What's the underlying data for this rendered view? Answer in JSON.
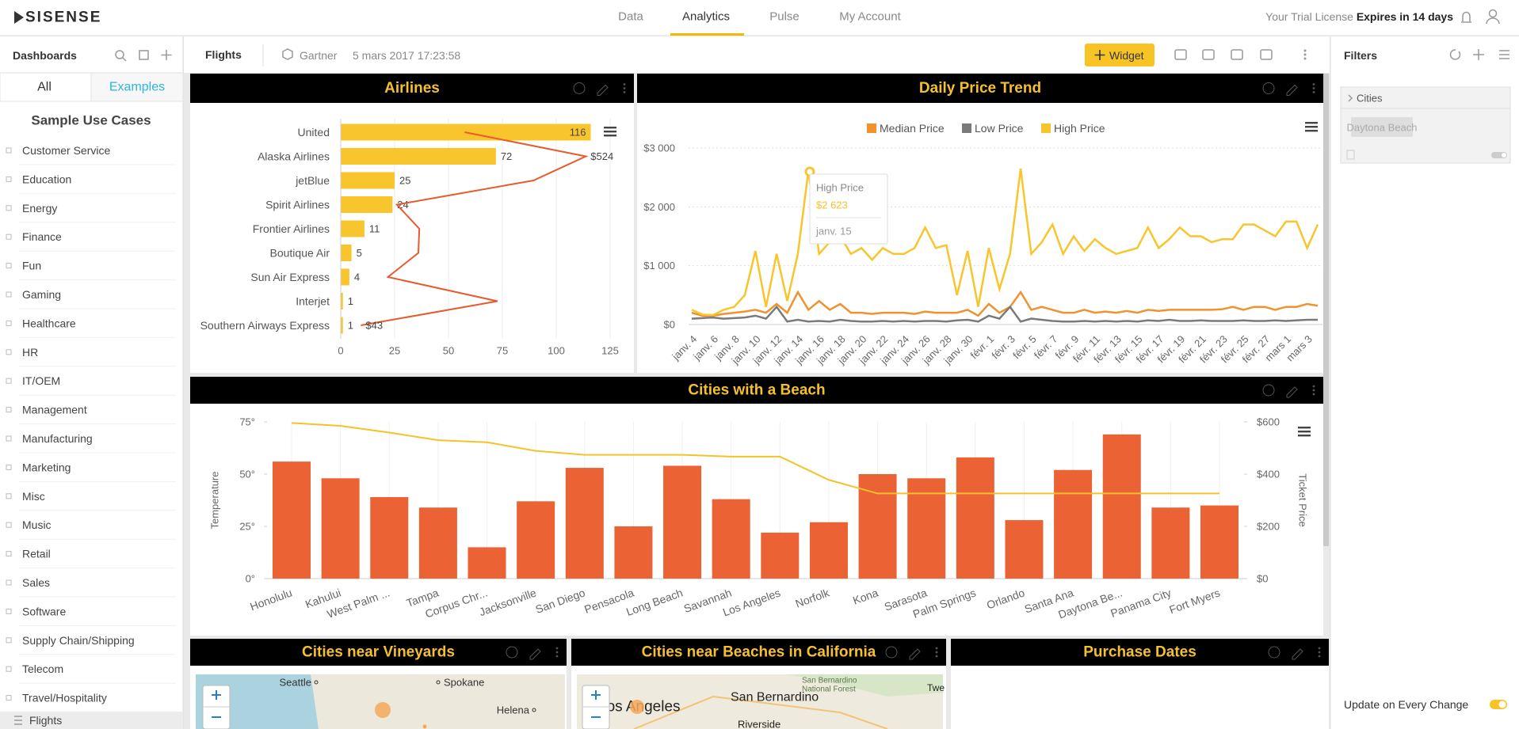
{
  "nav": {
    "logo": "SISENSE",
    "items": [
      "Data",
      "Analytics",
      "Pulse",
      "My Account"
    ],
    "active": "Analytics",
    "trial_prefix": "Your Trial License",
    "trial_expiry": "Expires in 14 days"
  },
  "sidebar": {
    "title": "Dashboards",
    "tabs": [
      "All",
      "Examples"
    ],
    "section": "Sample Use Cases",
    "items": [
      "Customer Service",
      "Education",
      "Energy",
      "Finance",
      "Fun",
      "Gaming",
      "Healthcare",
      "HR",
      "IT/OEM",
      "Management",
      "Manufacturing",
      "Marketing",
      "Misc",
      "Music",
      "Retail",
      "Sales",
      "Software",
      "Supply Chain/Shipping",
      "Telecom",
      "Travel/Hospitality"
    ],
    "selected": "Flights"
  },
  "toolbar": {
    "dashboard": "Flights",
    "source": "Gartner",
    "date": "5 mars 2017 17:23:58",
    "widget_button": "Widget"
  },
  "filters": {
    "title": "Filters",
    "field": "Cities",
    "value": "Daytona Beach",
    "update_label": "Update on Every Change"
  },
  "widgets": [
    {
      "title": "Airlines",
      "chart_data": {
        "type": "bar",
        "orientation": "horizontal",
        "categories": [
          "United",
          "Alaska Airlines",
          "jetBlue",
          "Spirit Airlines",
          "Frontier Airlines",
          "Boutique Air",
          "Sun Air Express",
          "Interjet",
          "Southern Airways Express"
        ],
        "values": [
          116,
          72,
          25,
          24,
          11,
          5,
          4,
          1,
          1
        ],
        "color": "#f9c52c",
        "xlim": [
          0,
          125
        ],
        "xticks": [
          0,
          25,
          50,
          75,
          100,
          125
        ],
        "line": {
          "values": [
            265,
            524,
            412,
            120,
            168,
            166,
            101,
            335,
            43
          ],
          "value_labels": [
            null,
            "$524",
            null,
            null,
            null,
            null,
            null,
            null,
            "$43"
          ],
          "color": "#e85a2c",
          "x2lim": [
            0,
            576
          ]
        }
      }
    },
    {
      "title": "Daily Price Trend",
      "chart_data": {
        "type": "line",
        "categories": [
          "janv. 4",
          null,
          "janv. 6",
          null,
          "janv. 8",
          null,
          "janv. 10",
          null,
          "janv. 12",
          null,
          "janv. 14",
          null,
          "janv. 16",
          null,
          "janv. 18",
          null,
          "janv. 20",
          null,
          "janv. 22",
          null,
          "janv. 24",
          null,
          "janv. 26",
          null,
          "janv. 28",
          null,
          "janv. 30",
          null,
          "févr. 1",
          null,
          "févr. 3",
          null,
          "févr. 5",
          null,
          "févr. 7",
          null,
          "févr. 9",
          null,
          "févr. 11",
          null,
          "févr. 13",
          null,
          "févr. 15",
          null,
          "févr. 17",
          null,
          "févr. 19",
          null,
          "févr. 21",
          null,
          "févr. 23",
          null,
          "févr. 25",
          null,
          "févr. 27",
          null,
          "mars 1",
          null,
          "mars 3",
          null
        ],
        "series": [
          {
            "name": "Median Price",
            "color": "#f0922e",
            "values": [
              200,
              150,
              150,
              180,
              200,
              220,
              250,
              200,
              350,
              200,
              550,
              250,
              400,
              250,
              350,
              200,
              200,
              180,
              200,
              200,
              200,
              180,
              220,
              200,
              200,
              200,
              250,
              150,
              350,
              200,
              300,
              550,
              250,
              300,
              250,
              200,
              200,
              250,
              200,
              220,
              200,
              230,
              200,
              250,
              230,
              250,
              250,
              250,
              250,
              250,
              260,
              300,
              250,
              300,
              300,
              250,
              300,
              300,
              350,
              320
            ]
          },
          {
            "name": "Low Price",
            "color": "#7a7a7a",
            "values": [
              100,
              110,
              120,
              100,
              110,
              120,
              150,
              100,
              300,
              50,
              80,
              50,
              60,
              50,
              80,
              60,
              50,
              50,
              60,
              50,
              60,
              50,
              60,
              60,
              50,
              70,
              80,
              50,
              150,
              100,
              300,
              50,
              100,
              80,
              60,
              50,
              50,
              60,
              50,
              60,
              50,
              60,
              50,
              70,
              60,
              80,
              60,
              60,
              70,
              60,
              60,
              60,
              70,
              60,
              60,
              70,
              60,
              70,
              80,
              80
            ]
          },
          {
            "name": "High Price",
            "color": "#f9c52c",
            "values": [
              250,
              170,
              160,
              250,
              300,
              500,
              1250,
              300,
              1200,
              400,
              1200,
              2623,
              1200,
              1400,
              1500,
              1200,
              1300,
              1100,
              1300,
              1200,
              1200,
              1300,
              1650,
              1300,
              1350,
              500,
              1250,
              300,
              1300,
              600,
              1200,
              2650,
              1200,
              1400,
              1700,
              1200,
              1500,
              1250,
              1450,
              1300,
              1200,
              1250,
              1300,
              1650,
              1300,
              1450,
              1650,
              1500,
              1500,
              1400,
              1450,
              1450,
              1700,
              1700,
              1600,
              1500,
              1750,
              1750,
              1300,
              1700
            ]
          }
        ],
        "ylim": [
          0,
          3000
        ],
        "yticks": [
          {
            "value": 0,
            "label": "$0"
          },
          {
            "value": 1000,
            "label": "$1 000"
          },
          {
            "value": 2000,
            "label": "$2 000"
          },
          {
            "value": 3000,
            "label": "$3 000"
          }
        ],
        "grid": true,
        "legend": "top",
        "tooltip": {
          "value_label": "$2 623",
          "category": "janv. 15"
        }
      }
    },
    {
      "title": "Cities with a Beach",
      "chart_data": {
        "type": "bar_line",
        "categories": [
          "Honolulu",
          "Kahului",
          "West Palm ...",
          "Tampa",
          "Corpus Chr...",
          "Jacksonville",
          "San Diego",
          "Pensacola",
          "Long Beach",
          "Savannah",
          "Los Angeles",
          "Norfolk",
          "Kona",
          "Sarasota",
          "Palm Springs",
          "Orlando",
          "Santa Ana",
          "Daytona Be...",
          "Panama City",
          "Fort Myers"
        ],
        "series": [
          {
            "color": "#eb6234",
            "values": [
              56,
              48,
              39,
              34,
              15,
              37,
              53,
              25,
              54,
              38,
              22,
              27,
              50,
              48,
              58,
              28,
              52,
              69,
              34,
              35
            ]
          },
          {
            "color": "#f5c227",
            "axis": "y2",
            "values": [
              596,
              585,
              559,
              530,
              522,
              489,
              474,
              474,
              474,
              467,
              467,
              378,
              326,
              326,
              326,
              326,
              326,
              326,
              326,
              326
            ]
          }
        ],
        "y_label": "Temperature",
        "y2_label": "Ticket Price",
        "ylim": [
          0,
          75
        ],
        "yticks": [
          {
            "value": 0,
            "label": "0°"
          },
          {
            "value": 25,
            "label": "25°"
          },
          {
            "value": 50,
            "label": "50°"
          },
          {
            "value": 75,
            "label": "75°"
          }
        ],
        "y2lim": [
          0,
          600
        ],
        "y2ticks": [
          {
            "value": 0,
            "label": "$0"
          },
          {
            "value": 200,
            "label": "$200"
          },
          {
            "value": 400,
            "label": "$400"
          },
          {
            "value": 600,
            "label": "$600"
          }
        ]
      }
    },
    {
      "title": "Cities near Vineyards",
      "map_labels": [
        "Seattle",
        "Spokane",
        "Helena"
      ]
    },
    {
      "title": "Cities near Beaches in California",
      "map_labels": [
        "San Bernardino",
        "San Bernardino",
        "National Forest",
        "Los Angeles",
        "Riverside",
        "Twe"
      ]
    },
    {
      "title": "Purchase Dates"
    }
  ]
}
